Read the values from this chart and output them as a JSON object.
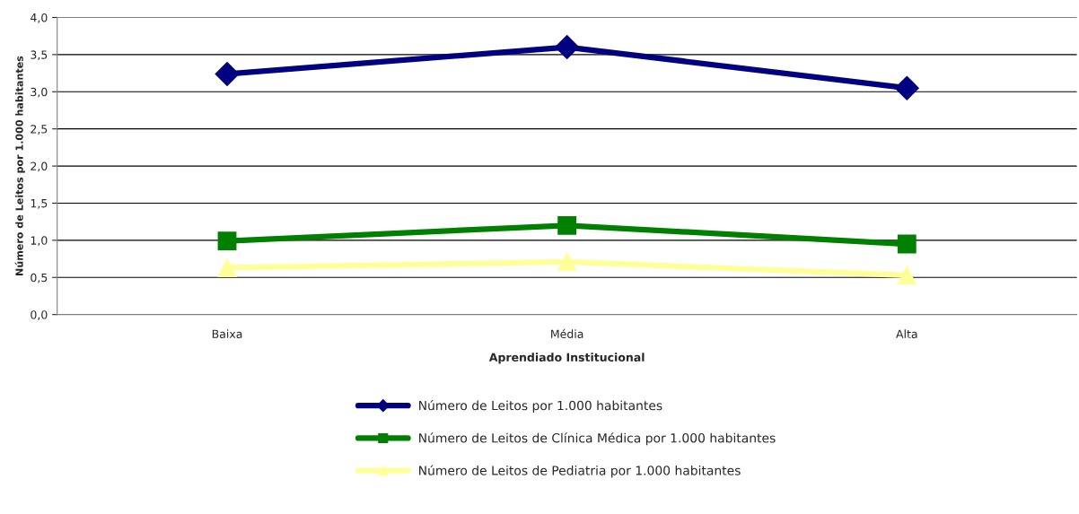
{
  "chart_data": {
    "type": "line",
    "xlabel": "Aprendiado Institucional",
    "ylabel": "Número de Leitos por 1.000 habitantes",
    "categories": [
      "Baixa",
      "Média",
      "Alta"
    ],
    "series": [
      {
        "name": "Número de Leitos por 1.000 habitantes",
        "color": "#000080",
        "marker": "diamond",
        "values": [
          3.24,
          3.6,
          3.05
        ]
      },
      {
        "name": "Número de Leitos de Clínica Médica por 1.000 habitantes",
        "color": "#008000",
        "marker": "square",
        "values": [
          0.99,
          1.2,
          0.95
        ]
      },
      {
        "name": "Número de Leitos de Pediatria por 1.000 habitantes",
        "color": "#ffff99",
        "marker": "triangle",
        "values": [
          0.63,
          0.71,
          0.53
        ]
      }
    ],
    "ylim": [
      0,
      4
    ],
    "yticks": [
      {
        "value": 0,
        "label": "0,0"
      },
      {
        "value": 0.5,
        "label": "0,5"
      },
      {
        "value": 1,
        "label": "1,0"
      },
      {
        "value": 1.5,
        "label": "1,5"
      },
      {
        "value": 2,
        "label": "2,0"
      },
      {
        "value": 2.5,
        "label": "2,5"
      },
      {
        "value": 3,
        "label": "3,0"
      },
      {
        "value": 3.5,
        "label": "3,5"
      },
      {
        "value": 4,
        "label": "4,0"
      }
    ],
    "grid": "y",
    "legend": "bottom",
    "line_style": "solid"
  }
}
